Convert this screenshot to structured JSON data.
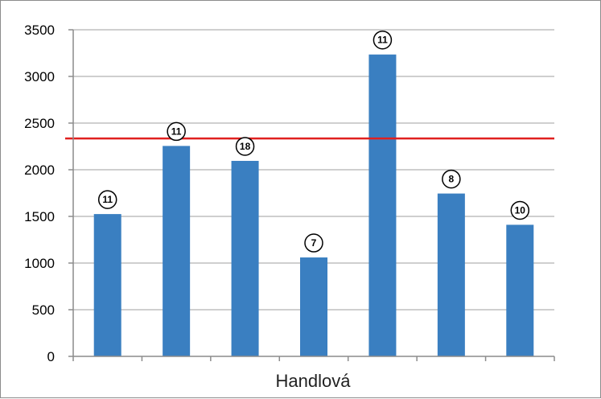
{
  "chart_data": {
    "type": "bar",
    "xlabel": "Handlová",
    "ylabel": "",
    "ylim": [
      0,
      3500
    ],
    "yticks": [
      0,
      500,
      1000,
      1500,
      2000,
      2500,
      3000,
      3500
    ],
    "values": [
      1525,
      2255,
      2095,
      1060,
      3235,
      1745,
      1410
    ],
    "bar_labels": [
      "11",
      "11",
      "18",
      "7",
      "11",
      "8",
      "10"
    ],
    "reference_line": 2335,
    "grid": true,
    "legend": "none",
    "colors": {
      "bar": "#3a7fc1",
      "reference_line": "#e0201f",
      "grid": "#bfbfbf"
    }
  }
}
